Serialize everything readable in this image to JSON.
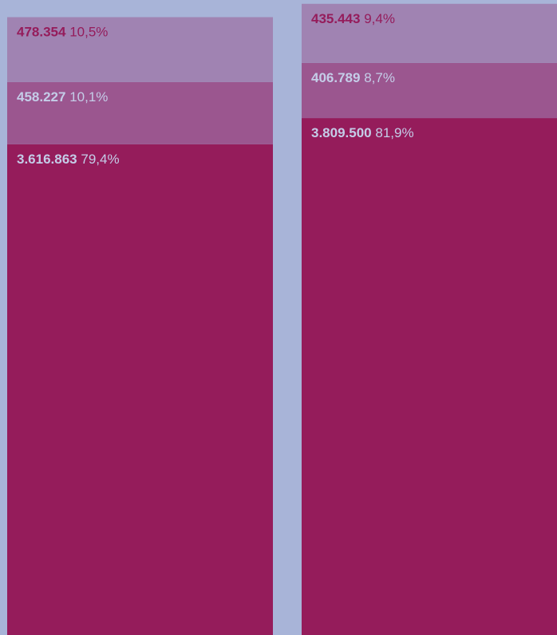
{
  "chart_data": {
    "type": "stacked_bar",
    "categories": [
      null,
      null
    ],
    "ylim": [
      0,
      4680000
    ],
    "series": [
      {
        "color": "#951c5b",
        "label_color": "#c4cde8",
        "values": [
          3616863,
          3809500
        ],
        "value_labels": [
          "3.616.863",
          "3.809.500"
        ],
        "share_labels": [
          "79,4%",
          "81,9%"
        ]
      },
      {
        "color": "#9b568f",
        "label_color": "#c4cde8",
        "values": [
          458227,
          406789
        ],
        "value_labels": [
          "458.227",
          "406.789"
        ],
        "share_labels": [
          "10,1%",
          "8,7%"
        ]
      },
      {
        "color": "#a083b2",
        "label_color": "#951c5b",
        "values": [
          478354,
          435443
        ],
        "value_labels": [
          "478.354",
          "435.443"
        ],
        "share_labels": [
          "10,5%",
          "9,4%"
        ]
      }
    ]
  }
}
